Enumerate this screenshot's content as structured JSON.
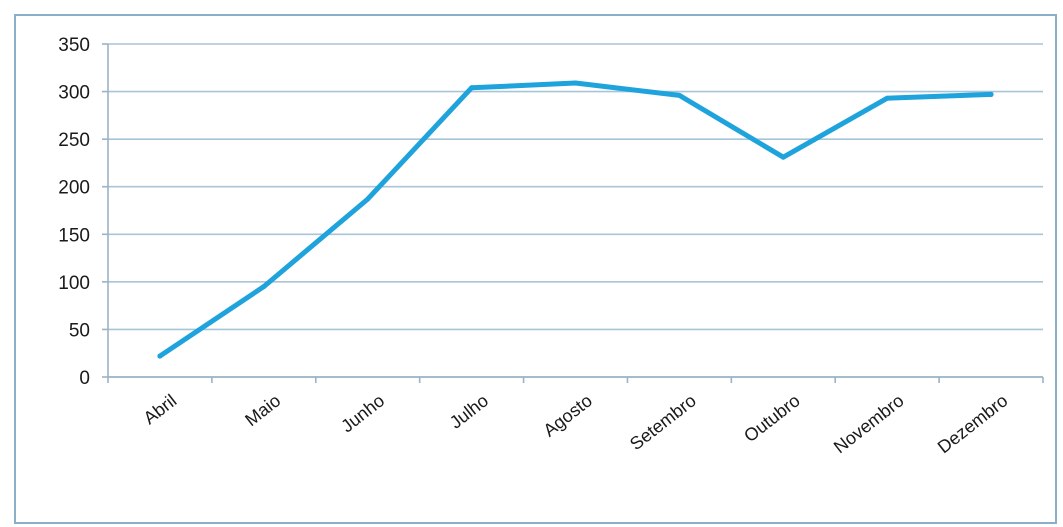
{
  "chart_data": {
    "type": "line",
    "categories": [
      "Abril",
      "Maio",
      "Junho",
      "Julho",
      "Agosto",
      "Setembro",
      "Outubro",
      "Novembro",
      "Dezembro"
    ],
    "series": [
      {
        "values": [
          22,
          95,
          187,
          304,
          309,
          296,
          231,
          293,
          297
        ]
      }
    ],
    "title": "",
    "xlabel": "",
    "ylabel": "",
    "ylim": [
      0,
      350
    ],
    "yticks": [
      0,
      50,
      100,
      150,
      200,
      250,
      300,
      350
    ],
    "grid": true,
    "legend": "none",
    "colors": {
      "line": "#1fa3dc",
      "grid": "#a8c4d8",
      "axis": "#9ab3c6",
      "frame": "#8ab0c8"
    }
  }
}
